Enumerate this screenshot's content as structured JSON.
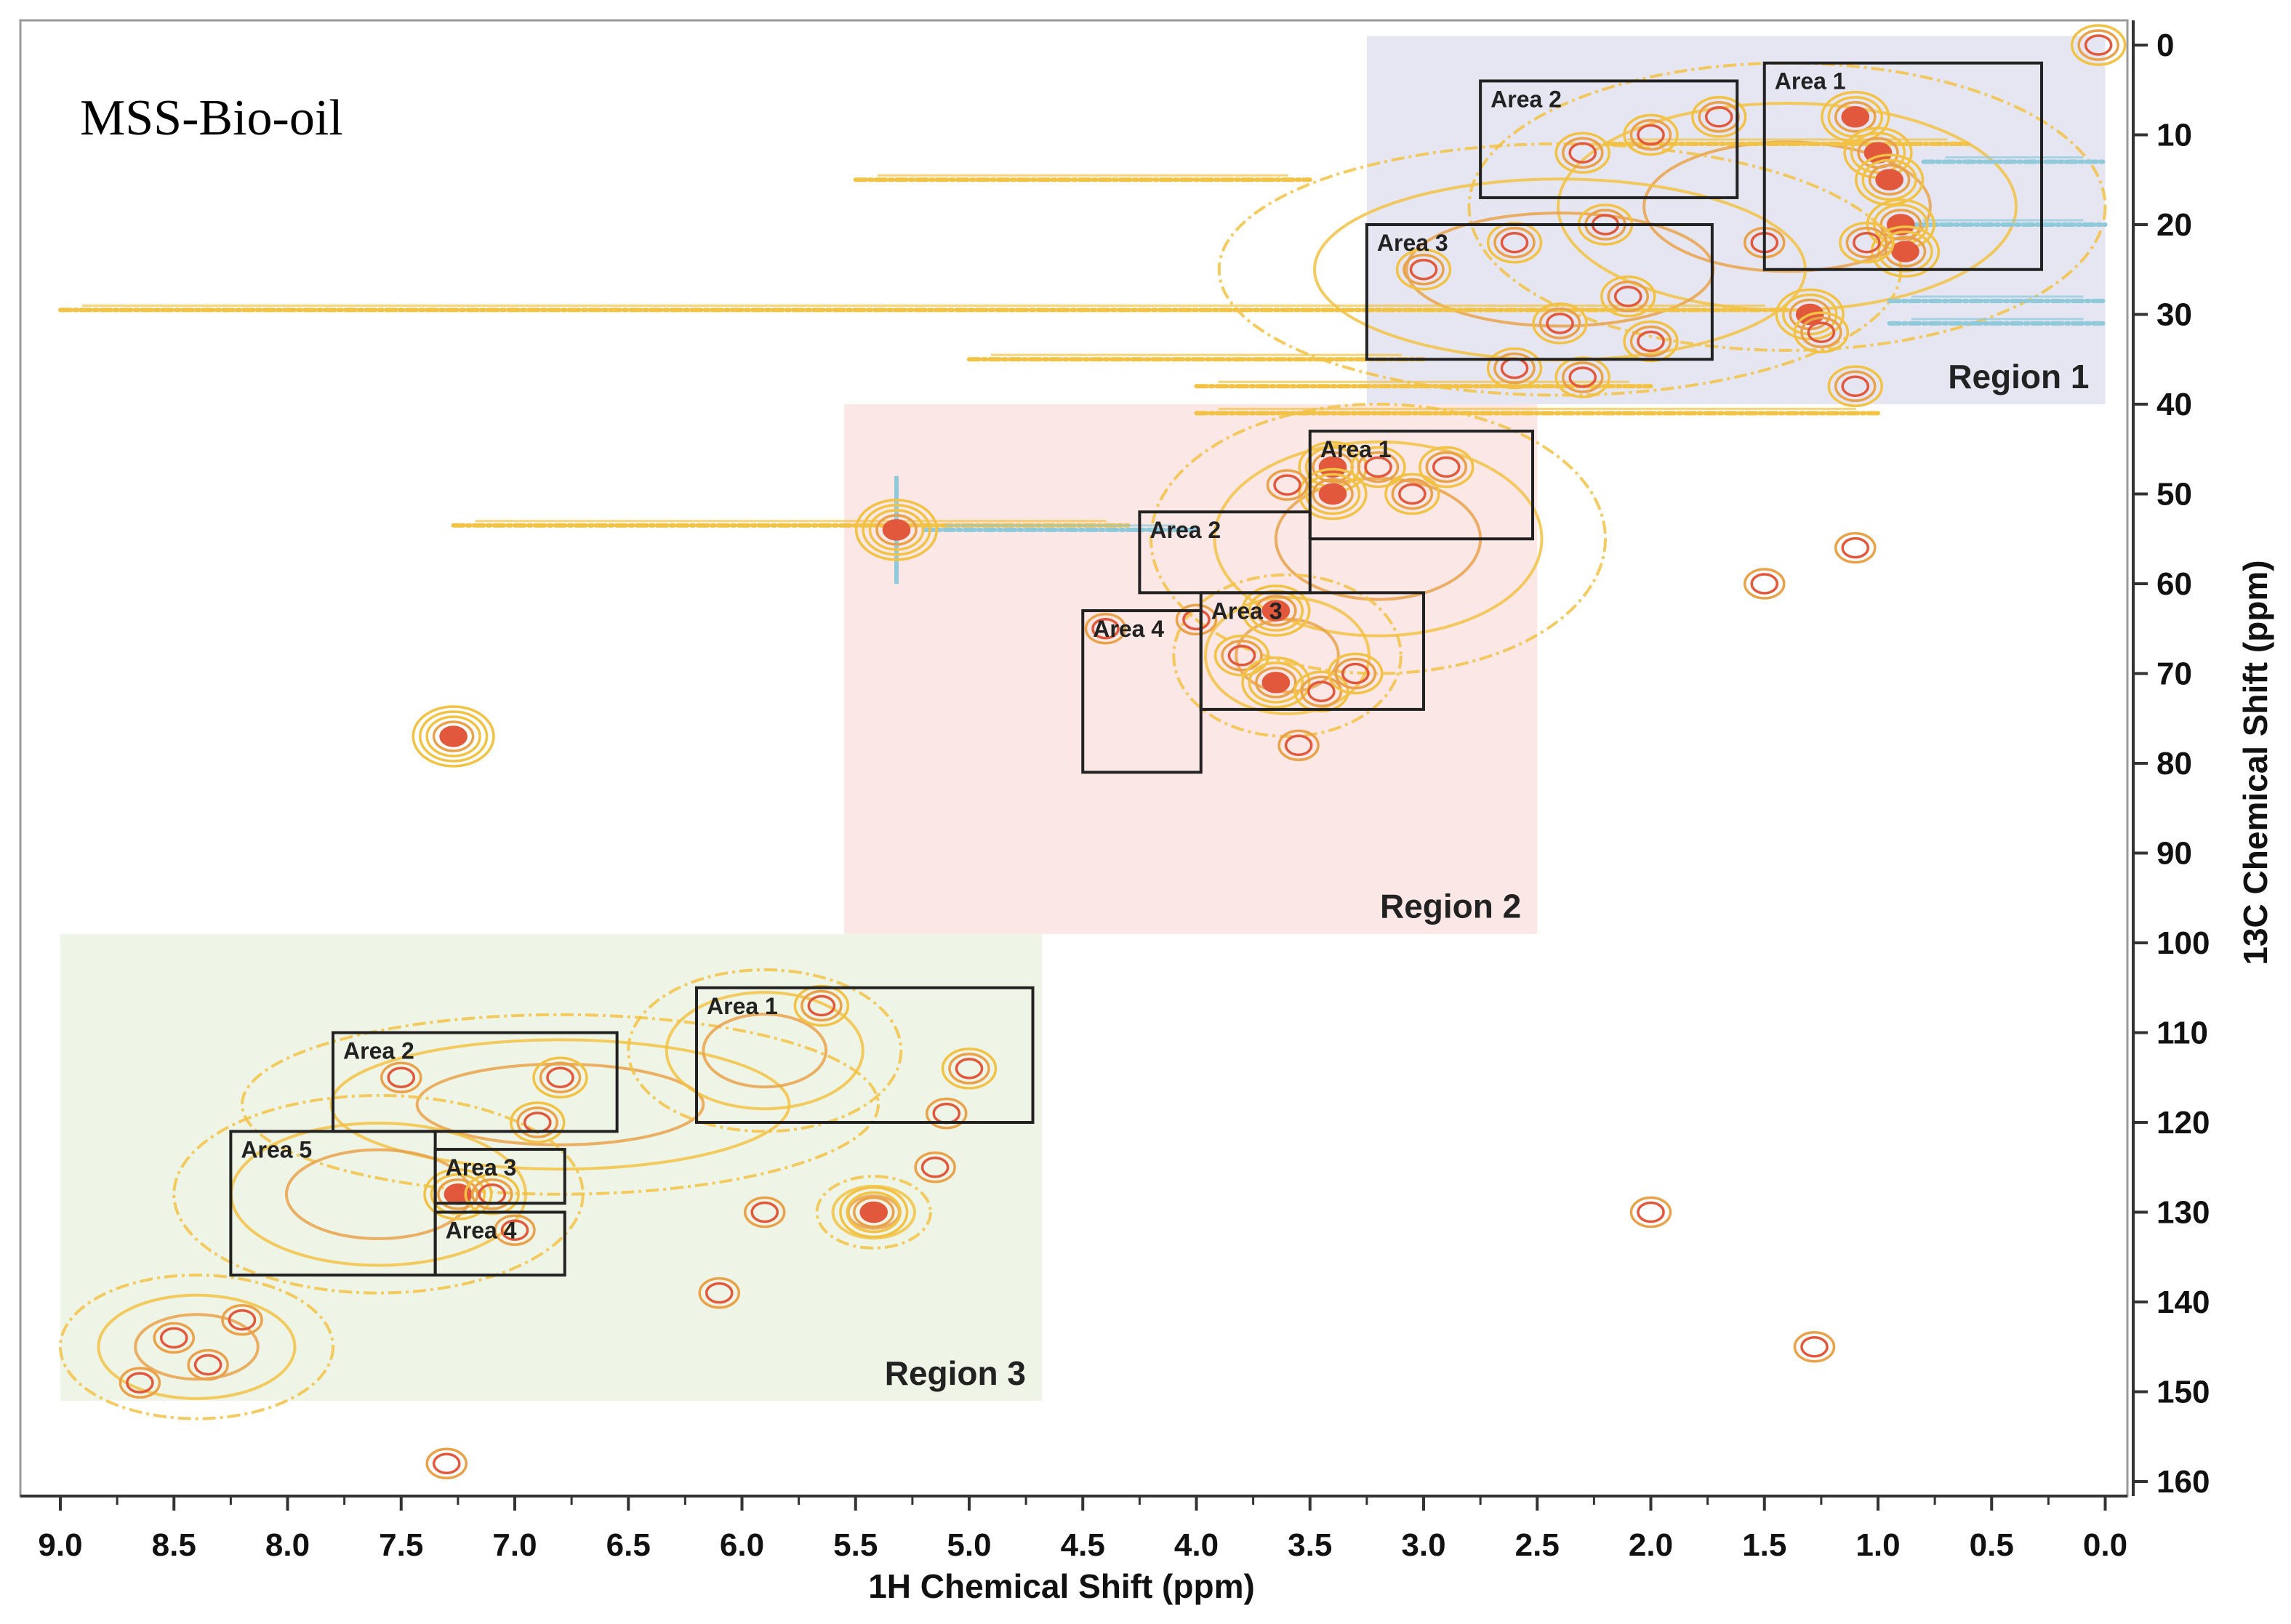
{
  "chart_data": {
    "type": "scatter",
    "subtype": "2D HSQC NMR contour spectrum",
    "title": "MSS-Bio-oil",
    "xlabel": "1H Chemical Shift (ppm)",
    "ylabel": "13C Chemical Shift (ppm)",
    "xlim": [
      9.0,
      0.0
    ],
    "ylim": [
      160,
      0
    ],
    "x_reversed": true,
    "y_reversed": true,
    "x_ticks": [
      "9.0",
      "8.5",
      "8.0",
      "7.5",
      "7.0",
      "6.5",
      "6.0",
      "5.5",
      "5.0",
      "4.5",
      "4.0",
      "3.5",
      "3.0",
      "2.5",
      "2.0",
      "1.5",
      "1.0",
      "0.5",
      "0.0"
    ],
    "y_ticks": [
      "0",
      "10",
      "20",
      "30",
      "40",
      "50",
      "60",
      "70",
      "80",
      "90",
      "100",
      "110",
      "120",
      "130",
      "140",
      "150",
      "160"
    ],
    "colors": {
      "contour_low": "#f2c244",
      "contour_mid": "#e9a24a",
      "contour_high": "#e2583c",
      "contour_negative": "#8fc9da"
    },
    "regions": [
      {
        "name": "Region 1",
        "x_range": [
          3.25,
          0.0
        ],
        "y_range": [
          -1,
          40
        ],
        "fill": "#e6e6f2",
        "areas": [
          {
            "name": "Area 1",
            "x_range": [
              1.5,
              0.28
            ],
            "y_range": [
              2,
              25
            ]
          },
          {
            "name": "Area 2",
            "x_range": [
              2.75,
              1.62
            ],
            "y_range": [
              4,
              17
            ]
          },
          {
            "name": "Area 3",
            "x_range": [
              3.25,
              1.73
            ],
            "y_range": [
              20,
              35
            ]
          }
        ]
      },
      {
        "name": "Region 2",
        "x_range": [
          5.55,
          2.5
        ],
        "y_range": [
          40,
          99
        ],
        "fill": "#fbe8e6",
        "areas": [
          {
            "name": "Area 1",
            "x_range": [
              3.5,
              2.52
            ],
            "y_range": [
              43,
              55
            ]
          },
          {
            "name": "Area 2",
            "x_range": [
              4.25,
              3.5
            ],
            "y_range": [
              52,
              61
            ]
          },
          {
            "name": "Area 3",
            "x_range": [
              3.98,
              3.0
            ],
            "y_range": [
              61,
              74
            ]
          },
          {
            "name": "Area 4",
            "x_range": [
              4.5,
              3.98
            ],
            "y_range": [
              63,
              81
            ]
          }
        ]
      },
      {
        "name": "Region 3",
        "x_range": [
          9.0,
          4.68
        ],
        "y_range": [
          99,
          151
        ],
        "fill": "#eef4e6",
        "areas": [
          {
            "name": "Area 1",
            "x_range": [
              6.2,
              4.72
            ],
            "y_range": [
              105,
              120
            ]
          },
          {
            "name": "Area 2",
            "x_range": [
              7.8,
              6.55
            ],
            "y_range": [
              110,
              121
            ]
          },
          {
            "name": "Area 3",
            "x_range": [
              7.35,
              6.78
            ],
            "y_range": [
              123,
              129
            ]
          },
          {
            "name": "Area 4",
            "x_range": [
              7.35,
              6.78
            ],
            "y_range": [
              130,
              137
            ]
          },
          {
            "name": "Area 5",
            "x_range": [
              8.25,
              7.35
            ],
            "y_range": [
              121,
              137
            ]
          }
        ]
      }
    ],
    "cross_peaks": [
      {
        "x": 1.1,
        "y": 8,
        "level": 3
      },
      {
        "x": 1.0,
        "y": 12,
        "level": 3
      },
      {
        "x": 0.95,
        "y": 15,
        "level": 3
      },
      {
        "x": 0.9,
        "y": 20,
        "level": 3
      },
      {
        "x": 0.88,
        "y": 23,
        "level": 3
      },
      {
        "x": 1.05,
        "y": 22,
        "level": 2
      },
      {
        "x": 1.3,
        "y": 30,
        "level": 3
      },
      {
        "x": 1.25,
        "y": 32,
        "level": 2
      },
      {
        "x": 1.1,
        "y": 38,
        "level": 2
      },
      {
        "x": 1.7,
        "y": 8,
        "level": 2
      },
      {
        "x": 2.0,
        "y": 10,
        "level": 2
      },
      {
        "x": 2.3,
        "y": 12,
        "level": 2
      },
      {
        "x": 2.2,
        "y": 20,
        "level": 2
      },
      {
        "x": 2.6,
        "y": 22,
        "level": 2
      },
      {
        "x": 3.0,
        "y": 25,
        "level": 2
      },
      {
        "x": 2.1,
        "y": 28,
        "level": 2
      },
      {
        "x": 2.4,
        "y": 31,
        "level": 2
      },
      {
        "x": 2.0,
        "y": 33,
        "level": 2
      },
      {
        "x": 2.6,
        "y": 36,
        "level": 2
      },
      {
        "x": 2.3,
        "y": 37,
        "level": 2
      },
      {
        "x": 1.5,
        "y": 22,
        "level": 1
      },
      {
        "x": 3.4,
        "y": 47,
        "level": 3
      },
      {
        "x": 3.4,
        "y": 50,
        "level": 3
      },
      {
        "x": 3.2,
        "y": 47,
        "level": 2
      },
      {
        "x": 3.05,
        "y": 50,
        "level": 2
      },
      {
        "x": 2.9,
        "y": 47,
        "level": 2
      },
      {
        "x": 3.6,
        "y": 49,
        "level": 1
      },
      {
        "x": 3.65,
        "y": 63,
        "level": 3
      },
      {
        "x": 3.8,
        "y": 68,
        "level": 2
      },
      {
        "x": 3.65,
        "y": 71,
        "level": 3
      },
      {
        "x": 3.45,
        "y": 72,
        "level": 2
      },
      {
        "x": 3.3,
        "y": 70,
        "level": 2
      },
      {
        "x": 3.55,
        "y": 78,
        "level": 1
      },
      {
        "x": 4.0,
        "y": 64,
        "level": 1
      },
      {
        "x": 4.4,
        "y": 65,
        "level": 1
      },
      {
        "x": 5.32,
        "y": 54,
        "level": 4
      },
      {
        "x": 7.27,
        "y": 77,
        "level": 4
      },
      {
        "x": 5.42,
        "y": 130,
        "level": 3
      },
      {
        "x": 5.15,
        "y": 125,
        "level": 1
      },
      {
        "x": 5.0,
        "y": 114,
        "level": 2
      },
      {
        "x": 5.65,
        "y": 107,
        "level": 2
      },
      {
        "x": 5.9,
        "y": 130,
        "level": 1
      },
      {
        "x": 5.1,
        "y": 119,
        "level": 1
      },
      {
        "x": 7.25,
        "y": 128,
        "level": 3
      },
      {
        "x": 7.1,
        "y": 128,
        "level": 2
      },
      {
        "x": 6.9,
        "y": 120,
        "level": 2
      },
      {
        "x": 6.8,
        "y": 115,
        "level": 2
      },
      {
        "x": 7.5,
        "y": 115,
        "level": 1
      },
      {
        "x": 7.0,
        "y": 132,
        "level": 1
      },
      {
        "x": 8.5,
        "y": 144,
        "level": 1
      },
      {
        "x": 8.35,
        "y": 147,
        "level": 1
      },
      {
        "x": 8.65,
        "y": 149,
        "level": 1
      },
      {
        "x": 8.2,
        "y": 142,
        "level": 1
      },
      {
        "x": 6.1,
        "y": 139,
        "level": 1
      },
      {
        "x": 2.0,
        "y": 130,
        "level": 1
      },
      {
        "x": 1.28,
        "y": 145,
        "level": 1
      },
      {
        "x": 7.3,
        "y": 158,
        "level": 1
      },
      {
        "x": 1.1,
        "y": 56,
        "level": 1
      },
      {
        "x": 1.5,
        "y": 60,
        "level": 1
      },
      {
        "x": 0.03,
        "y": 0,
        "level": 2
      }
    ],
    "horizontal_streaks": [
      {
        "y": 29.5,
        "x_range": [
          9.0,
          1.4
        ],
        "color": "contour_low"
      },
      {
        "y": 53.5,
        "x_range": [
          7.27,
          4.3
        ],
        "color": "contour_low"
      },
      {
        "y": 54.0,
        "x_range": [
          5.2,
          4.0
        ],
        "color": "contour_negative"
      },
      {
        "y": 28.5,
        "x_range": [
          0.95,
          0.0
        ],
        "color": "contour_negative"
      },
      {
        "y": 31.0,
        "x_range": [
          0.95,
          0.0
        ],
        "color": "contour_negative"
      },
      {
        "y": 20.0,
        "x_range": [
          0.9,
          0.0
        ],
        "color": "contour_negative"
      },
      {
        "y": 13.0,
        "x_range": [
          0.8,
          0.0
        ],
        "color": "contour_negative"
      },
      {
        "y": 11.0,
        "x_range": [
          2.2,
          0.6
        ],
        "color": "contour_low"
      },
      {
        "y": 15.0,
        "x_range": [
          5.5,
          3.5
        ],
        "color": "contour_low"
      },
      {
        "y": 35.0,
        "x_range": [
          5.0,
          3.0
        ],
        "color": "contour_low"
      },
      {
        "y": 38.0,
        "x_range": [
          4.0,
          2.0
        ],
        "color": "contour_low"
      },
      {
        "y": 41.0,
        "x_range": [
          4.0,
          1.0
        ],
        "color": "contour_low"
      }
    ],
    "blobs": [
      {
        "cx": 1.4,
        "cy": 18,
        "rx": 1.4,
        "ry": 16
      },
      {
        "cx": 2.4,
        "cy": 25,
        "rx": 1.5,
        "ry": 14
      },
      {
        "cx": 3.2,
        "cy": 55,
        "rx": 1.0,
        "ry": 15
      },
      {
        "cx": 3.6,
        "cy": 68,
        "rx": 0.5,
        "ry": 9
      },
      {
        "cx": 6.8,
        "cy": 118,
        "rx": 1.4,
        "ry": 10
      },
      {
        "cx": 7.6,
        "cy": 128,
        "rx": 0.9,
        "ry": 11
      },
      {
        "cx": 8.4,
        "cy": 145,
        "rx": 0.6,
        "ry": 8
      },
      {
        "cx": 5.9,
        "cy": 112,
        "rx": 0.6,
        "ry": 9
      },
      {
        "cx": 5.42,
        "cy": 130,
        "rx": 0.25,
        "ry": 4
      }
    ]
  }
}
